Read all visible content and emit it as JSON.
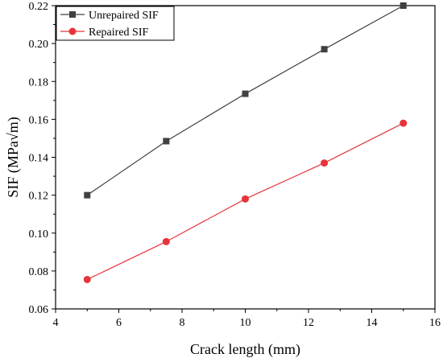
{
  "chart_data": {
    "type": "line",
    "title": "",
    "xlabel": "Crack length (mm)",
    "ylabel": "SIF (MPa√m)",
    "xlim": [
      4,
      16
    ],
    "ylim": [
      0.06,
      0.22
    ],
    "xticks": [
      "4",
      "6",
      "8",
      "10",
      "12",
      "14",
      "16"
    ],
    "yticks": [
      "0.06",
      "0.08",
      "0.10",
      "0.12",
      "0.14",
      "0.16",
      "0.18",
      "0.20",
      "0.22"
    ],
    "grid": false,
    "legend_position": "top-left",
    "series": [
      {
        "name": "Unrepaired SIF",
        "color": "#404040",
        "marker": "square",
        "x": [
          5,
          7.5,
          10,
          12.5,
          15
        ],
        "y": [
          0.12,
          0.1485,
          0.1735,
          0.197,
          0.22
        ]
      },
      {
        "name": "Repaired SIF",
        "color": "#e8333a",
        "marker": "circle",
        "x": [
          5,
          7.5,
          10,
          12.5,
          15
        ],
        "y": [
          0.0755,
          0.0955,
          0.118,
          0.137,
          0.158
        ]
      }
    ]
  }
}
